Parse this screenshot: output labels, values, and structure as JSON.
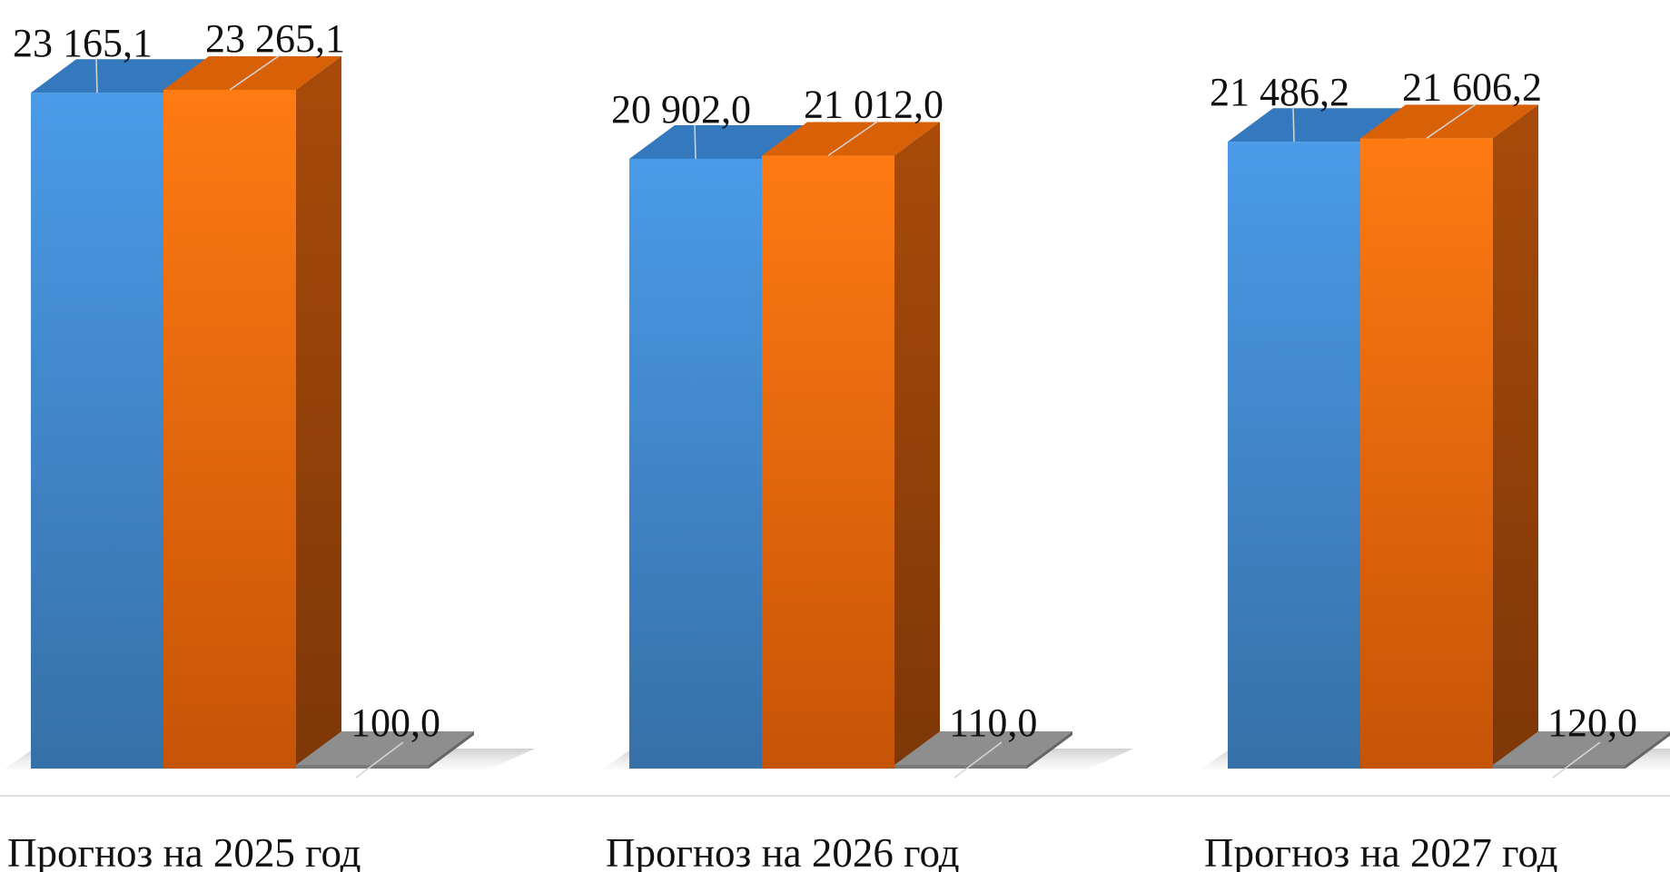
{
  "chart_data": {
    "type": "bar",
    "categories": [
      "Прогноз на 2025 год",
      "Прогноз на 2026 год",
      "Прогноз на 2027 год"
    ],
    "series": [
      {
        "values": [
          23165.1,
          20902.0,
          21486.2
        ],
        "labels": [
          "23 165,1",
          "20 902,0",
          "21 486,2"
        ],
        "color": "#4A9BE8"
      },
      {
        "values": [
          23265.1,
          21012.0,
          21606.2
        ],
        "labels": [
          "23 265,1",
          "21 012,0",
          "21 606,2"
        ],
        "color": "#FF7A12"
      },
      {
        "values": [
          100.0,
          110.0,
          120.0
        ],
        "labels": [
          "100,0",
          "110,0",
          "120,0"
        ],
        "color": "#7A7A7A"
      }
    ],
    "title": "",
    "xlabel": "",
    "ylabel": "",
    "ylim": [
      0,
      23265.1
    ],
    "grid": false,
    "legend": "none",
    "style": "3d-column"
  }
}
